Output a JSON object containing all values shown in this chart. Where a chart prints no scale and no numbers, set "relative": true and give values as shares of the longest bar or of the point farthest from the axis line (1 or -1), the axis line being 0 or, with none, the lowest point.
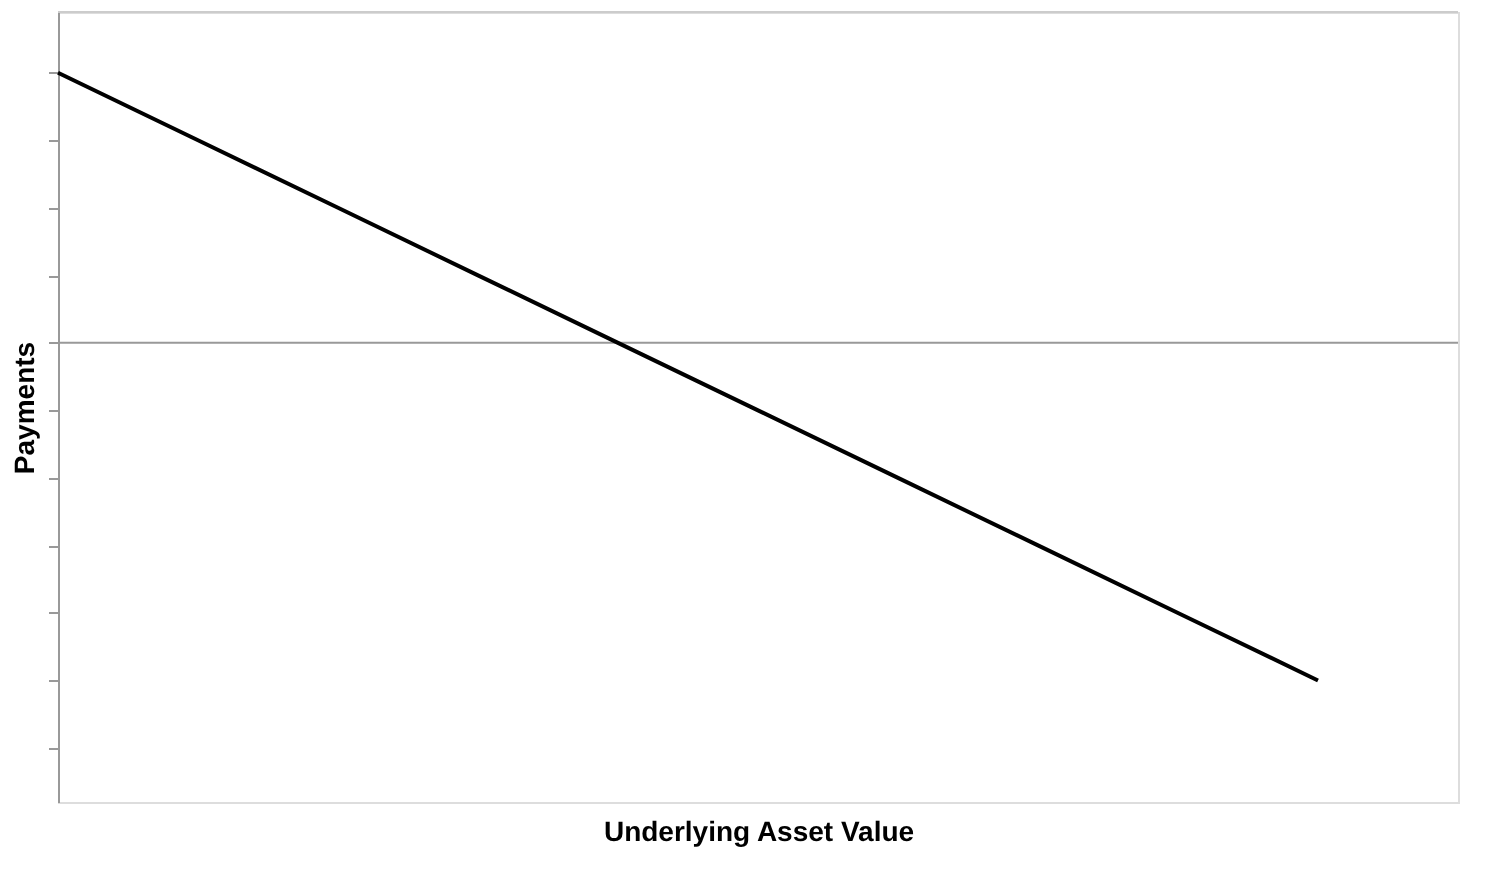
{
  "chart_data": {
    "type": "line",
    "relative": true,
    "xlabel": "Underlying Asset Value",
    "ylabel": "Payments",
    "categories": [
      null,
      null,
      null,
      null,
      null,
      null,
      null,
      null,
      null,
      null,
      null
    ],
    "series": [
      {
        "color": "#000000",
        "values": [
          0.8,
          0.6,
          0.4,
          0.2,
          0,
          -0.2,
          -0.4,
          -0.6,
          -0.8,
          -1.0,
          null
        ]
      }
    ],
    "grid": false,
    "marker": "none",
    "line_style": "solid"
  }
}
